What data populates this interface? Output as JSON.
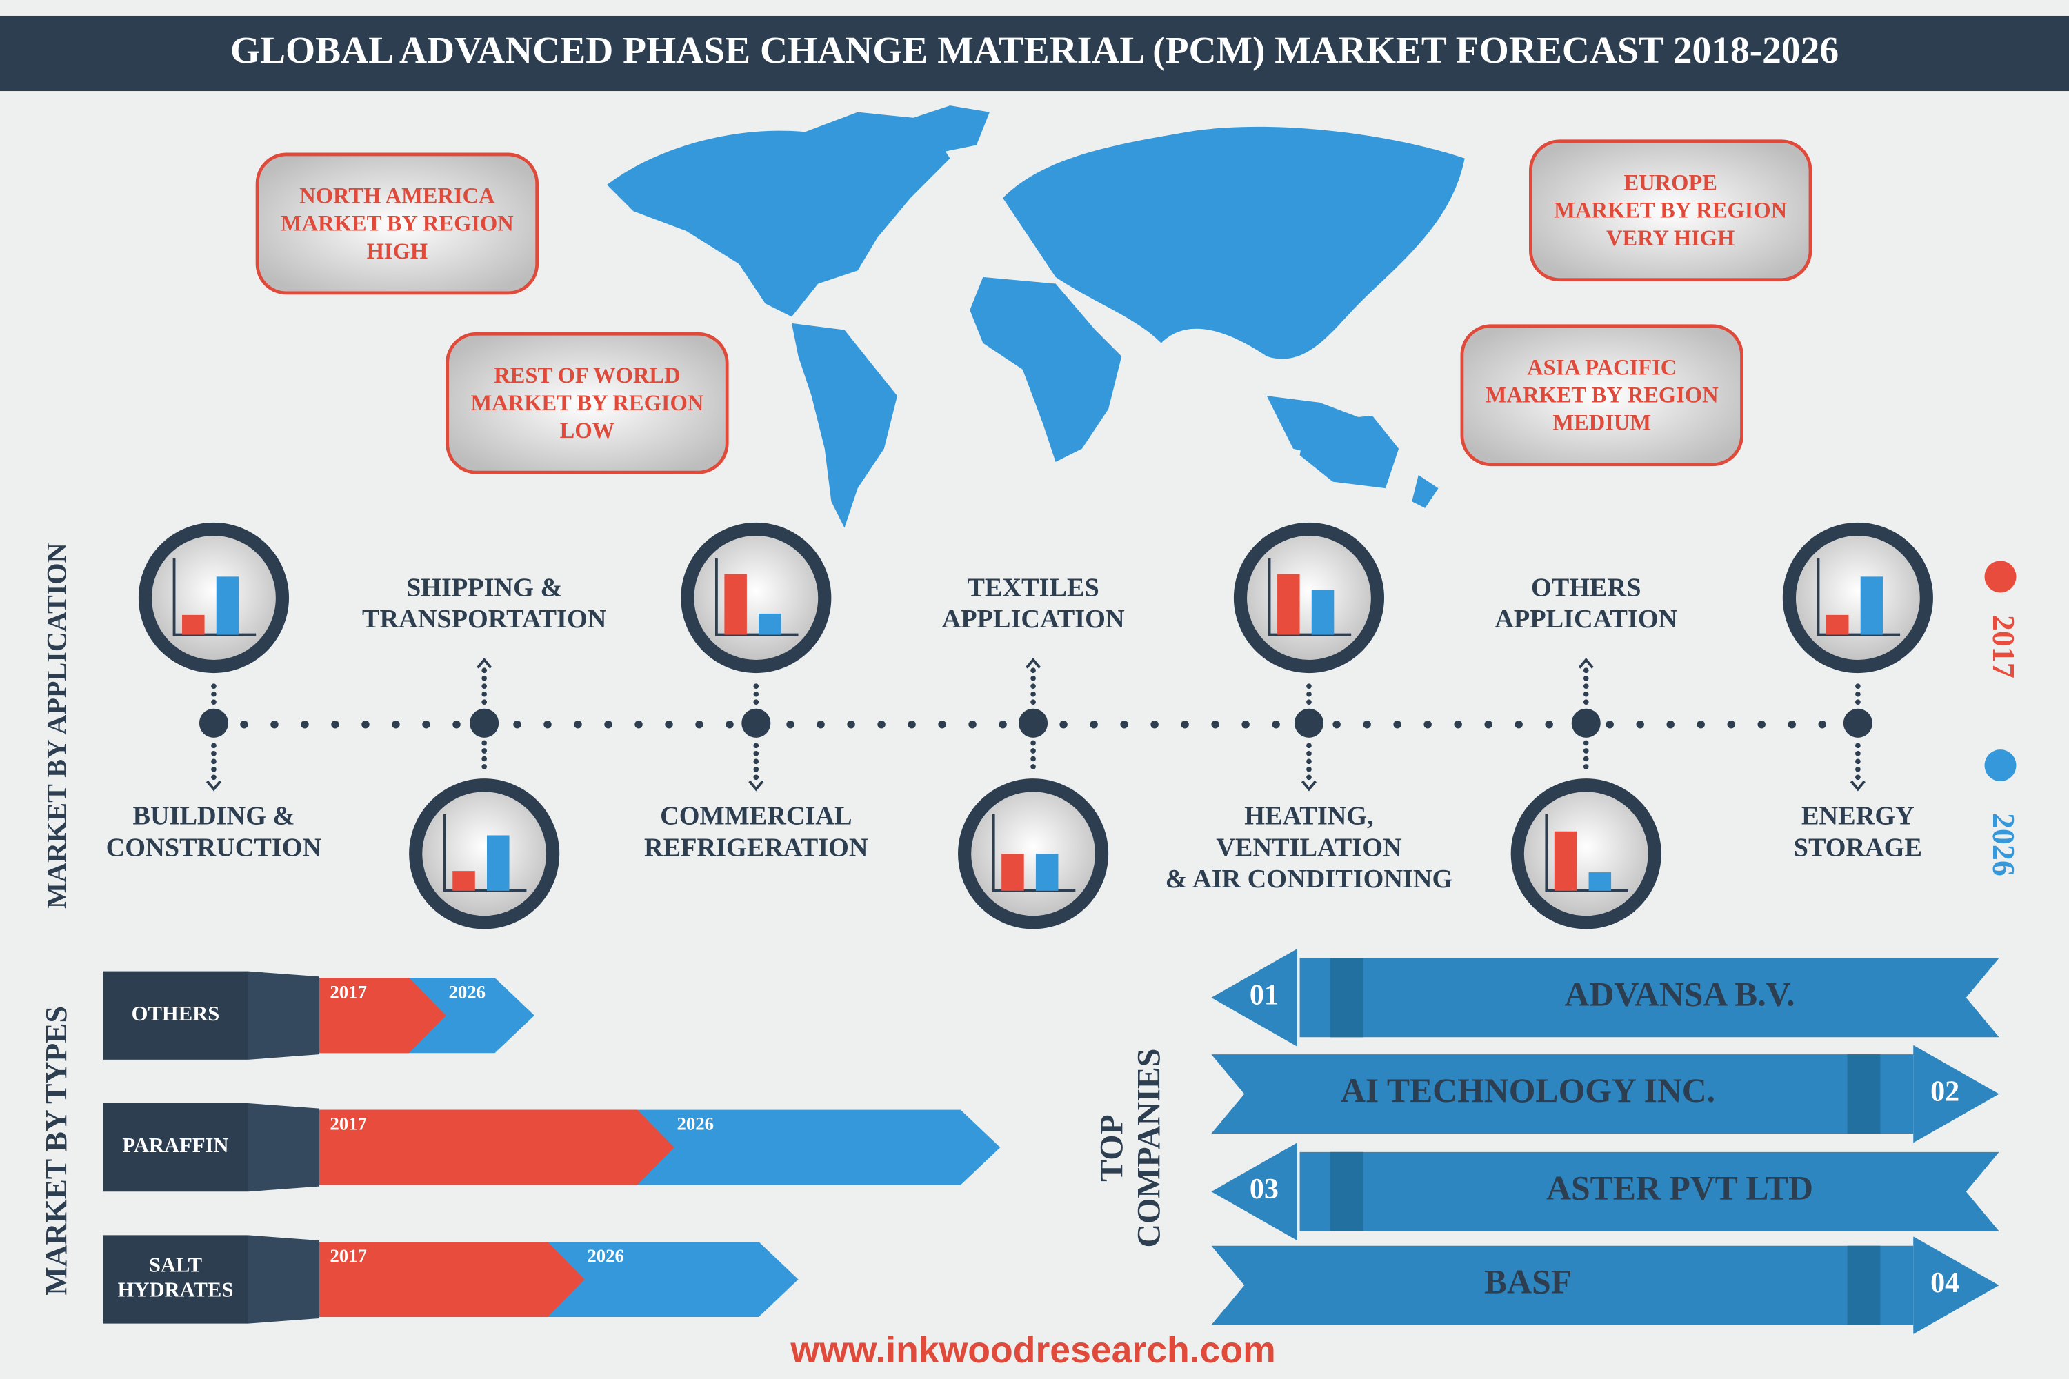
{
  "title": "GLOBAL ADVANCED PHASE CHANGE MATERIAL (PCM) MARKET FORECAST 2018-2026",
  "regions": [
    {
      "name": "NORTH AMERICA",
      "label": "MARKET BY REGION",
      "level": "HIGH"
    },
    {
      "name": "REST OF WORLD",
      "label": "MARKET BY REGION",
      "level": "LOW"
    },
    {
      "name": "EUROPE",
      "label": "MARKET BY REGION",
      "level": "VERY HIGH"
    },
    {
      "name": "ASIA PACIFIC",
      "label": "MARKET BY REGION",
      "level": "MEDIUM"
    }
  ],
  "application": {
    "heading": "MARKET BY APPLICATION",
    "items": [
      {
        "lines": [
          "BUILDING &",
          "CONSTRUCTION"
        ]
      },
      {
        "lines": [
          "SHIPPING &",
          "TRANSPORTATION"
        ]
      },
      {
        "lines": [
          "COMMERCIAL",
          "REFRIGERATION"
        ]
      },
      {
        "lines": [
          "TEXTILES",
          "APPLICATION"
        ]
      },
      {
        "lines": [
          "HEATING,",
          "VENTILATION",
          "& AIR CONDITIONING"
        ]
      },
      {
        "lines": [
          "OTHERS",
          "APPLICATION"
        ]
      },
      {
        "lines": [
          "ENERGY",
          "STORAGE"
        ]
      }
    ]
  },
  "legend": [
    {
      "name": "2017",
      "color": "#e84c3d"
    },
    {
      "name": "2026",
      "color": "#3498db"
    }
  ],
  "types": {
    "heading": "MARKET BY TYPES",
    "items": [
      {
        "lines": [
          "OTHERS"
        ]
      },
      {
        "lines": [
          "PARAFFIN"
        ]
      },
      {
        "lines": [
          "SALT",
          "HYDRATES"
        ]
      }
    ]
  },
  "companies": {
    "heading": [
      "TOP",
      "COMPANIES"
    ],
    "items": [
      {
        "rank": "01",
        "name": "ADVANSA B.V."
      },
      {
        "rank": "02",
        "name": "AI TECHNOLOGY INC."
      },
      {
        "rank": "03",
        "name": "ASTER PVT LTD"
      },
      {
        "rank": "04",
        "name": "BASF"
      }
    ]
  },
  "footer": "www.inkwoodresearch.com"
}
